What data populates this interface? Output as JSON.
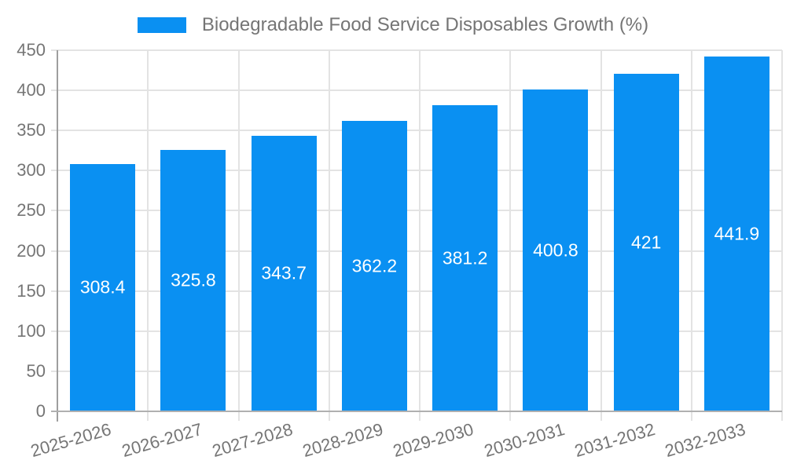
{
  "legend": {
    "label": "Biodegradable Food Service Disposables Growth (%)",
    "swatch_color": "#0a90f2"
  },
  "chart_data": {
    "type": "bar",
    "title": "Biodegradable Food Service Disposables Growth (%)",
    "categories": [
      "2025-2026",
      "2026-2027",
      "2027-2028",
      "2028-2029",
      "2029-2030",
      "2030-2031",
      "2031-2032",
      "2032-2033"
    ],
    "values": [
      308.4,
      325.8,
      343.7,
      362.2,
      381.2,
      400.8,
      421,
      441.9
    ],
    "value_labels": [
      "308.4",
      "325.8",
      "343.7",
      "362.2",
      "381.2",
      "400.8",
      "421",
      "441.9"
    ],
    "xlabel": "",
    "ylabel": "",
    "ylim": [
      0,
      450
    ],
    "yticks": [
      "0",
      "50",
      "100",
      "150",
      "200",
      "250",
      "300",
      "350",
      "400",
      "450"
    ],
    "grid": true,
    "legend_position": "top",
    "bar_color": "#0a90f2",
    "value_label_color": "#ffffff",
    "axis_text_color": "#757575"
  }
}
